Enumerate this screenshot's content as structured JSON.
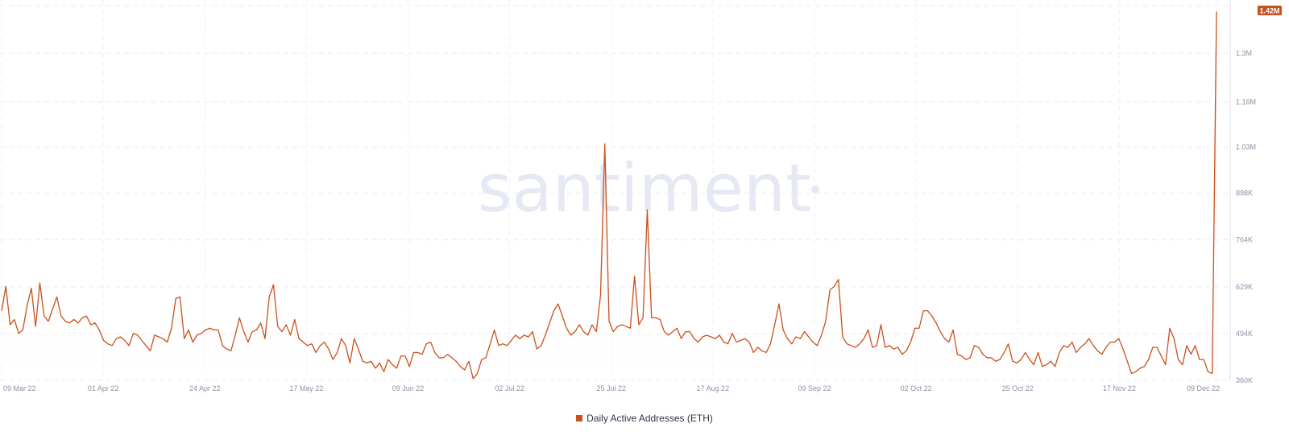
{
  "chart_data": {
    "type": "area",
    "watermark": "santiment",
    "current_value_label": "1.42M",
    "x_tick_labels": [
      "09 Mar 22",
      "01 Apr 22",
      "24 Apr 22",
      "17 May 22",
      "09 Jun 22",
      "02 Jul 22",
      "25 Jul 22",
      "17 Aug 22",
      "09 Sep 22",
      "02 Oct 22",
      "25 Oct 22",
      "17 Nov 22",
      "09 Dec 22"
    ],
    "y_tick_labels": [
      "360K",
      "494K",
      "629K",
      "764K",
      "898K",
      "1.03M",
      "1.16M",
      "1.3M"
    ],
    "y_tick_values": [
      360000,
      494000,
      629000,
      764000,
      898000,
      1030000,
      1160000,
      1300000
    ],
    "ylim": [
      360000,
      1430000
    ],
    "x_start": "2022-03-09",
    "x_end": "2022-12-09",
    "accent_color": "#c9511f",
    "series": [
      {
        "name": "Daily Active Addresses (ETH)",
        "values": [
          560000,
          630000,
          520000,
          535000,
          495000,
          505000,
          575000,
          625000,
          515000,
          640000,
          545000,
          530000,
          565000,
          600000,
          545000,
          530000,
          525000,
          535000,
          525000,
          540000,
          545000,
          520000,
          525000,
          505000,
          475000,
          465000,
          460000,
          480000,
          485000,
          475000,
          460000,
          495000,
          490000,
          475000,
          460000,
          445000,
          490000,
          485000,
          480000,
          470000,
          510000,
          595000,
          600000,
          480000,
          505000,
          470000,
          490000,
          495000,
          505000,
          510000,
          505000,
          505000,
          460000,
          450000,
          445000,
          490000,
          540000,
          500000,
          470000,
          500000,
          505000,
          525000,
          480000,
          600000,
          635000,
          515000,
          500000,
          520000,
          490000,
          535000,
          480000,
          470000,
          460000,
          465000,
          440000,
          460000,
          470000,
          450000,
          420000,
          440000,
          480000,
          460000,
          410000,
          480000,
          450000,
          415000,
          410000,
          415000,
          395000,
          410000,
          385000,
          420000,
          405000,
          395000,
          430000,
          430000,
          400000,
          440000,
          440000,
          435000,
          465000,
          470000,
          440000,
          425000,
          425000,
          435000,
          425000,
          415000,
          400000,
          390000,
          415000,
          365000,
          380000,
          420000,
          425000,
          465000,
          505000,
          460000,
          465000,
          460000,
          475000,
          490000,
          480000,
          490000,
          485000,
          500000,
          450000,
          460000,
          490000,
          525000,
          560000,
          580000,
          545000,
          510000,
          490000,
          500000,
          520000,
          500000,
          490000,
          520000,
          500000,
          605000,
          1040000,
          530000,
          500000,
          515000,
          520000,
          515000,
          510000,
          660000,
          520000,
          540000,
          850000,
          540000,
          540000,
          535000,
          500000,
          490000,
          500000,
          510000,
          480000,
          500000,
          500000,
          480000,
          470000,
          485000,
          490000,
          485000,
          480000,
          490000,
          470000,
          465000,
          495000,
          470000,
          475000,
          480000,
          470000,
          440000,
          455000,
          445000,
          440000,
          465000,
          520000,
          580000,
          505000,
          480000,
          465000,
          485000,
          480000,
          500000,
          485000,
          470000,
          460000,
          490000,
          530000,
          620000,
          630000,
          650000,
          485000,
          465000,
          460000,
          455000,
          465000,
          480000,
          505000,
          455000,
          460000,
          520000,
          455000,
          460000,
          450000,
          455000,
          435000,
          445000,
          470000,
          510000,
          510000,
          560000,
          560000,
          545000,
          525000,
          500000,
          480000,
          470000,
          505000,
          435000,
          430000,
          420000,
          425000,
          460000,
          455000,
          435000,
          425000,
          425000,
          415000,
          420000,
          440000,
          465000,
          415000,
          410000,
          420000,
          440000,
          420000,
          405000,
          440000,
          400000,
          405000,
          415000,
          400000,
          440000,
          460000,
          455000,
          470000,
          440000,
          455000,
          465000,
          480000,
          460000,
          445000,
          435000,
          455000,
          470000,
          470000,
          480000,
          450000,
          415000,
          380000,
          385000,
          395000,
          400000,
          420000,
          455000,
          455000,
          430000,
          405000,
          510000,
          480000,
          420000,
          405000,
          460000,
          435000,
          460000,
          420000,
          420000,
          385000,
          380000,
          1420000
        ]
      }
    ]
  },
  "legend": {
    "label": "Daily Active Addresses (ETH)"
  }
}
